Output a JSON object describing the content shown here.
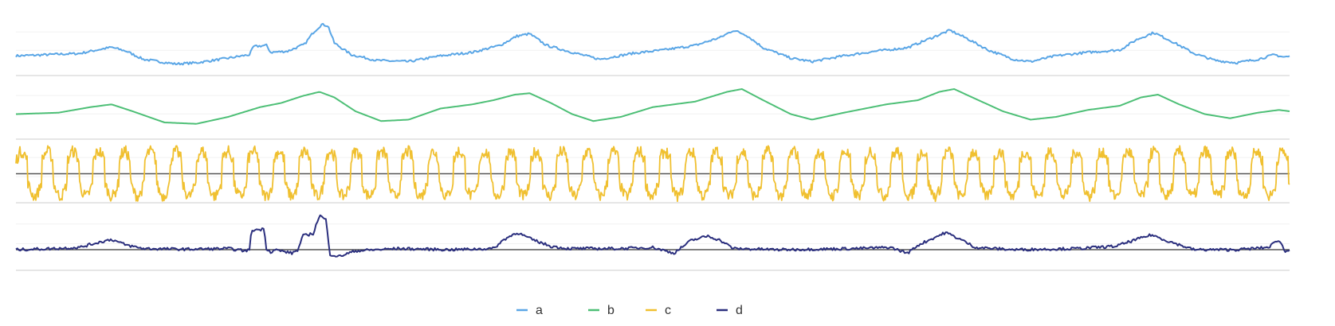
{
  "chart_data": {
    "type": "line",
    "title": "",
    "xlabel": "",
    "ylabel": "",
    "grid": true,
    "legend_placement": "bottom-center",
    "x": {
      "start": 0,
      "end": 600
    },
    "series": [
      {
        "name": "a",
        "color": "#5aa6e6",
        "ylim": [
          -1.1,
          1.3
        ],
        "baseline": null,
        "points": [
          [
            0,
            -0.25
          ],
          [
            10,
            -0.22
          ],
          [
            20,
            -0.18
          ],
          [
            30,
            -0.15
          ],
          [
            38,
            0.0
          ],
          [
            45,
            0.12
          ],
          [
            52,
            -0.05
          ],
          [
            60,
            -0.4
          ],
          [
            75,
            -0.6
          ],
          [
            85,
            -0.55
          ],
          [
            100,
            -0.35
          ],
          [
            110,
            -0.2
          ],
          [
            112,
            0.15
          ],
          [
            118,
            0.2
          ],
          [
            120,
            -0.1
          ],
          [
            128,
            -0.05
          ],
          [
            132,
            0.1
          ],
          [
            136,
            0.25
          ],
          [
            140,
            0.75
          ],
          [
            144,
            1.1
          ],
          [
            147,
            1.05
          ],
          [
            150,
            0.3
          ],
          [
            158,
            -0.2
          ],
          [
            170,
            -0.45
          ],
          [
            185,
            -0.5
          ],
          [
            200,
            -0.25
          ],
          [
            215,
            -0.1
          ],
          [
            228,
            0.2
          ],
          [
            236,
            0.6
          ],
          [
            242,
            0.7
          ],
          [
            250,
            0.2
          ],
          [
            262,
            -0.1
          ],
          [
            275,
            -0.4
          ],
          [
            290,
            -0.15
          ],
          [
            305,
            0.0
          ],
          [
            320,
            0.2
          ],
          [
            332,
            0.55
          ],
          [
            338,
            0.85
          ],
          [
            344,
            0.65
          ],
          [
            352,
            0.1
          ],
          [
            365,
            -0.35
          ],
          [
            375,
            -0.5
          ],
          [
            390,
            -0.25
          ],
          [
            405,
            -0.05
          ],
          [
            420,
            0.1
          ],
          [
            432,
            0.55
          ],
          [
            440,
            0.85
          ],
          [
            448,
            0.5
          ],
          [
            458,
            0.0
          ],
          [
            470,
            -0.4
          ],
          [
            478,
            -0.5
          ],
          [
            490,
            -0.25
          ],
          [
            505,
            -0.1
          ],
          [
            520,
            0.0
          ],
          [
            528,
            0.45
          ],
          [
            536,
            0.75
          ],
          [
            544,
            0.4
          ],
          [
            555,
            -0.15
          ],
          [
            565,
            -0.45
          ],
          [
            575,
            -0.55
          ],
          [
            585,
            -0.4
          ],
          [
            593,
            -0.2
          ],
          [
            597,
            -0.3
          ],
          [
            600,
            -0.28
          ]
        ]
      },
      {
        "name": "b",
        "color": "#4dbf76",
        "ylim": [
          -1.0,
          1.0
        ],
        "baseline": null,
        "points": [
          [
            0,
            -0.1
          ],
          [
            20,
            -0.05
          ],
          [
            35,
            0.15
          ],
          [
            45,
            0.25
          ],
          [
            55,
            0.0
          ],
          [
            70,
            -0.4
          ],
          [
            85,
            -0.45
          ],
          [
            100,
            -0.2
          ],
          [
            115,
            0.15
          ],
          [
            125,
            0.3
          ],
          [
            135,
            0.55
          ],
          [
            143,
            0.7
          ],
          [
            150,
            0.5
          ],
          [
            160,
            0.0
          ],
          [
            172,
            -0.35
          ],
          [
            185,
            -0.3
          ],
          [
            200,
            0.1
          ],
          [
            215,
            0.25
          ],
          [
            225,
            0.4
          ],
          [
            235,
            0.6
          ],
          [
            242,
            0.65
          ],
          [
            252,
            0.3
          ],
          [
            262,
            -0.1
          ],
          [
            272,
            -0.35
          ],
          [
            285,
            -0.2
          ],
          [
            300,
            0.15
          ],
          [
            320,
            0.35
          ],
          [
            335,
            0.7
          ],
          [
            342,
            0.8
          ],
          [
            352,
            0.4
          ],
          [
            365,
            -0.1
          ],
          [
            375,
            -0.3
          ],
          [
            390,
            -0.05
          ],
          [
            410,
            0.25
          ],
          [
            425,
            0.4
          ],
          [
            435,
            0.7
          ],
          [
            442,
            0.8
          ],
          [
            452,
            0.45
          ],
          [
            465,
            0.0
          ],
          [
            478,
            -0.3
          ],
          [
            490,
            -0.2
          ],
          [
            505,
            0.05
          ],
          [
            520,
            0.2
          ],
          [
            530,
            0.5
          ],
          [
            538,
            0.6
          ],
          [
            548,
            0.25
          ],
          [
            560,
            -0.1
          ],
          [
            572,
            -0.25
          ],
          [
            585,
            -0.05
          ],
          [
            595,
            0.05
          ],
          [
            600,
            0.0
          ]
        ]
      },
      {
        "name": "c",
        "color": "#f0c030",
        "ylim": [
          -1.3,
          1.3
        ],
        "baseline": 0,
        "period": 12.1,
        "cycles": 49.5,
        "amplitude_high": 1.0,
        "amplitude_low": -1.0
      },
      {
        "name": "d",
        "color": "#2b2f7e",
        "ylim": [
          -0.9,
          1.7
        ],
        "baseline": 0,
        "points": [
          [
            0,
            0.0
          ],
          [
            18,
            0.05
          ],
          [
            30,
            0.1
          ],
          [
            38,
            0.3
          ],
          [
            45,
            0.45
          ],
          [
            52,
            0.2
          ],
          [
            60,
            0.05
          ],
          [
            80,
            0.02
          ],
          [
            100,
            0.05
          ],
          [
            108,
            -0.05
          ],
          [
            110,
            0.0
          ],
          [
            111,
            0.85
          ],
          [
            117,
            0.9
          ],
          [
            118,
            0.05
          ],
          [
            120,
            -0.1
          ],
          [
            122,
            0.0
          ],
          [
            130,
            -0.15
          ],
          [
            133,
            0.0
          ],
          [
            135,
            0.6
          ],
          [
            140,
            0.7
          ],
          [
            143,
            1.5
          ],
          [
            146,
            1.3
          ],
          [
            148,
            -0.2
          ],
          [
            152,
            -0.3
          ],
          [
            160,
            -0.05
          ],
          [
            180,
            0.05
          ],
          [
            205,
            0.0
          ],
          [
            225,
            0.05
          ],
          [
            230,
            0.45
          ],
          [
            236,
            0.75
          ],
          [
            243,
            0.45
          ],
          [
            252,
            0.15
          ],
          [
            260,
            0.05
          ],
          [
            285,
            0.05
          ],
          [
            300,
            0.1
          ],
          [
            310,
            -0.15
          ],
          [
            318,
            0.4
          ],
          [
            326,
            0.6
          ],
          [
            332,
            0.4
          ],
          [
            338,
            0.05
          ],
          [
            360,
            0.0
          ],
          [
            395,
            0.05
          ],
          [
            412,
            0.1
          ],
          [
            420,
            -0.15
          ],
          [
            425,
            0.2
          ],
          [
            432,
            0.5
          ],
          [
            438,
            0.75
          ],
          [
            445,
            0.45
          ],
          [
            452,
            0.1
          ],
          [
            470,
            0.0
          ],
          [
            500,
            0.05
          ],
          [
            518,
            0.15
          ],
          [
            528,
            0.45
          ],
          [
            535,
            0.65
          ],
          [
            542,
            0.4
          ],
          [
            555,
            0.0
          ],
          [
            575,
            0.0
          ],
          [
            590,
            0.1
          ],
          [
            595,
            0.45
          ],
          [
            598,
            -0.1
          ],
          [
            600,
            0.0
          ]
        ]
      }
    ]
  }
}
